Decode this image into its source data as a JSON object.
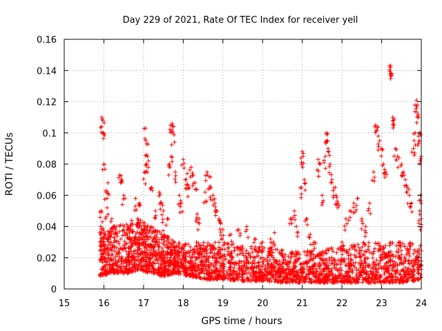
{
  "chart_data": {
    "type": "scatter",
    "title": "Day 229 of 2021, Rate Of TEC Index for receiver yell",
    "xlabel": "GPS time / hours",
    "ylabel": "ROTI / TECUs",
    "xlim": [
      15,
      24
    ],
    "ylim": [
      0,
      0.16
    ],
    "xticks": [
      15,
      16,
      17,
      18,
      19,
      20,
      21,
      22,
      23,
      24
    ],
    "yticks": [
      0,
      0.02,
      0.04,
      0.06,
      0.08,
      0.1,
      0.12,
      0.14,
      0.16
    ],
    "ytick_labels": [
      "0",
      "0.02",
      "0.04",
      "0.06",
      "0.08",
      "0.1",
      "0.12",
      "0.14",
      "0.16"
    ],
    "grid": true,
    "marker": "+",
    "series": [
      {
        "name": "ROTI",
        "color": "#ff0000",
        "points": [
          [
            15.95,
            0.11
          ],
          [
            15.97,
            0.108
          ],
          [
            15.98,
            0.1
          ],
          [
            16.0,
            0.08
          ],
          [
            15.93,
            0.05
          ],
          [
            16.05,
            0.063
          ],
          [
            16.1,
            0.068
          ],
          [
            16.08,
            0.052
          ],
          [
            15.96,
            0.043
          ],
          [
            15.92,
            0.04
          ],
          [
            16.2,
            0.045
          ],
          [
            16.3,
            0.038
          ],
          [
            16.4,
            0.073
          ],
          [
            16.45,
            0.07
          ],
          [
            16.5,
            0.06
          ],
          [
            16.6,
            0.04
          ],
          [
            16.7,
            0.044
          ],
          [
            16.8,
            0.058
          ],
          [
            16.9,
            0.055
          ],
          [
            16.85,
            0.045
          ],
          [
            17.05,
            0.103
          ],
          [
            17.08,
            0.093
          ],
          [
            17.1,
            0.085
          ],
          [
            17.07,
            0.08
          ],
          [
            17.02,
            0.075
          ],
          [
            17.2,
            0.065
          ],
          [
            17.3,
            0.05
          ],
          [
            17.4,
            0.062
          ],
          [
            17.45,
            0.055
          ],
          [
            17.5,
            0.05
          ],
          [
            17.6,
            0.045
          ],
          [
            17.68,
            0.105
          ],
          [
            17.72,
            0.106
          ],
          [
            17.74,
            0.1
          ],
          [
            17.7,
            0.085
          ],
          [
            17.8,
            0.075
          ],
          [
            17.65,
            0.08
          ],
          [
            17.9,
            0.06
          ],
          [
            17.95,
            0.055
          ],
          [
            18.0,
            0.083
          ],
          [
            18.05,
            0.07
          ],
          [
            18.1,
            0.074
          ],
          [
            18.2,
            0.078
          ],
          [
            18.25,
            0.073
          ],
          [
            18.3,
            0.068
          ],
          [
            18.15,
            0.065
          ],
          [
            18.35,
            0.048
          ],
          [
            18.4,
            0.045
          ],
          [
            18.6,
            0.075
          ],
          [
            18.65,
            0.072
          ],
          [
            18.7,
            0.065
          ],
          [
            18.75,
            0.06
          ],
          [
            18.8,
            0.055
          ],
          [
            18.85,
            0.05
          ],
          [
            18.9,
            0.045
          ],
          [
            18.95,
            0.042
          ],
          [
            19.0,
            0.038
          ],
          [
            18.55,
            0.062
          ],
          [
            19.2,
            0.035
          ],
          [
            19.4,
            0.038
          ],
          [
            19.6,
            0.04
          ],
          [
            19.8,
            0.032
          ],
          [
            20.0,
            0.03
          ],
          [
            20.2,
            0.032
          ],
          [
            20.3,
            0.036
          ],
          [
            20.5,
            0.025
          ],
          [
            20.7,
            0.045
          ],
          [
            20.8,
            0.05
          ],
          [
            20.85,
            0.04
          ],
          [
            21.0,
            0.088
          ],
          [
            21.02,
            0.085
          ],
          [
            21.05,
            0.07
          ],
          [
            20.98,
            0.065
          ],
          [
            21.1,
            0.045
          ],
          [
            21.2,
            0.035
          ],
          [
            21.3,
            0.03
          ],
          [
            21.4,
            0.083
          ],
          [
            21.45,
            0.08
          ],
          [
            21.5,
            0.06
          ],
          [
            21.6,
            0.1
          ],
          [
            21.62,
            0.095
          ],
          [
            21.65,
            0.09
          ],
          [
            21.58,
            0.085
          ],
          [
            21.7,
            0.08
          ],
          [
            21.75,
            0.07
          ],
          [
            21.8,
            0.065
          ],
          [
            21.85,
            0.06
          ],
          [
            21.9,
            0.055
          ],
          [
            22.0,
            0.03
          ],
          [
            22.1,
            0.045
          ],
          [
            22.2,
            0.05
          ],
          [
            22.3,
            0.055
          ],
          [
            22.4,
            0.058
          ],
          [
            22.5,
            0.045
          ],
          [
            22.6,
            0.04
          ],
          [
            22.7,
            0.055
          ],
          [
            22.8,
            0.075
          ],
          [
            22.85,
            0.105
          ],
          [
            22.9,
            0.104
          ],
          [
            22.95,
            0.095
          ],
          [
            23.0,
            0.09
          ],
          [
            23.05,
            0.08
          ],
          [
            23.1,
            0.075
          ],
          [
            23.2,
            0.143
          ],
          [
            23.22,
            0.142
          ],
          [
            23.25,
            0.138
          ],
          [
            23.28,
            0.11
          ],
          [
            23.3,
            0.108
          ],
          [
            23.35,
            0.09
          ],
          [
            23.4,
            0.085
          ],
          [
            23.5,
            0.08
          ],
          [
            23.55,
            0.075
          ],
          [
            23.6,
            0.07
          ],
          [
            23.65,
            0.065
          ],
          [
            23.7,
            0.06
          ],
          [
            23.75,
            0.055
          ],
          [
            23.8,
            0.09
          ],
          [
            23.85,
            0.1
          ],
          [
            23.88,
            0.121
          ],
          [
            23.9,
            0.118
          ],
          [
            23.92,
            0.112
          ],
          [
            23.95,
            0.095
          ],
          [
            23.97,
            0.1
          ],
          [
            24.0,
            0.085
          ],
          [
            23.98,
            0.06
          ],
          [
            23.96,
            0.05
          ],
          [
            24.0,
            0.045
          ],
          [
            16.0,
            0.025
          ],
          [
            16.2,
            0.022
          ],
          [
            16.5,
            0.028
          ],
          [
            16.8,
            0.032
          ],
          [
            17.0,
            0.03
          ],
          [
            17.2,
            0.028
          ],
          [
            17.5,
            0.024
          ],
          [
            17.8,
            0.02
          ],
          [
            18.0,
            0.022
          ],
          [
            18.2,
            0.02
          ],
          [
            18.5,
            0.018
          ],
          [
            18.8,
            0.02
          ],
          [
            19.0,
            0.018
          ],
          [
            19.3,
            0.017
          ],
          [
            19.6,
            0.016
          ],
          [
            19.9,
            0.015
          ],
          [
            20.2,
            0.014
          ],
          [
            20.5,
            0.013
          ],
          [
            20.8,
            0.013
          ],
          [
            21.0,
            0.014
          ],
          [
            21.3,
            0.015
          ],
          [
            21.6,
            0.015
          ],
          [
            21.9,
            0.016
          ],
          [
            22.2,
            0.015
          ],
          [
            22.5,
            0.016
          ],
          [
            22.8,
            0.017
          ],
          [
            23.1,
            0.016
          ],
          [
            23.4,
            0.015
          ],
          [
            23.7,
            0.016
          ],
          [
            24.0,
            0.015
          ]
        ],
        "band": [
          [
            15.9,
            0.008,
            0.035
          ],
          [
            16.2,
            0.01,
            0.04
          ],
          [
            16.6,
            0.01,
            0.042
          ],
          [
            16.9,
            0.012,
            0.045
          ],
          [
            17.2,
            0.01,
            0.04
          ],
          [
            17.5,
            0.008,
            0.038
          ],
          [
            17.8,
            0.01,
            0.03
          ],
          [
            18.2,
            0.008,
            0.03
          ],
          [
            18.6,
            0.006,
            0.03
          ],
          [
            19.0,
            0.006,
            0.03
          ],
          [
            19.5,
            0.005,
            0.028
          ],
          [
            20.0,
            0.005,
            0.027
          ],
          [
            20.5,
            0.004,
            0.025
          ],
          [
            21.0,
            0.004,
            0.025
          ],
          [
            21.5,
            0.004,
            0.025
          ],
          [
            22.0,
            0.004,
            0.028
          ],
          [
            22.5,
            0.004,
            0.03
          ],
          [
            23.0,
            0.004,
            0.03
          ],
          [
            23.5,
            0.004,
            0.03
          ],
          [
            24.0,
            0.006,
            0.03
          ]
        ]
      }
    ]
  }
}
